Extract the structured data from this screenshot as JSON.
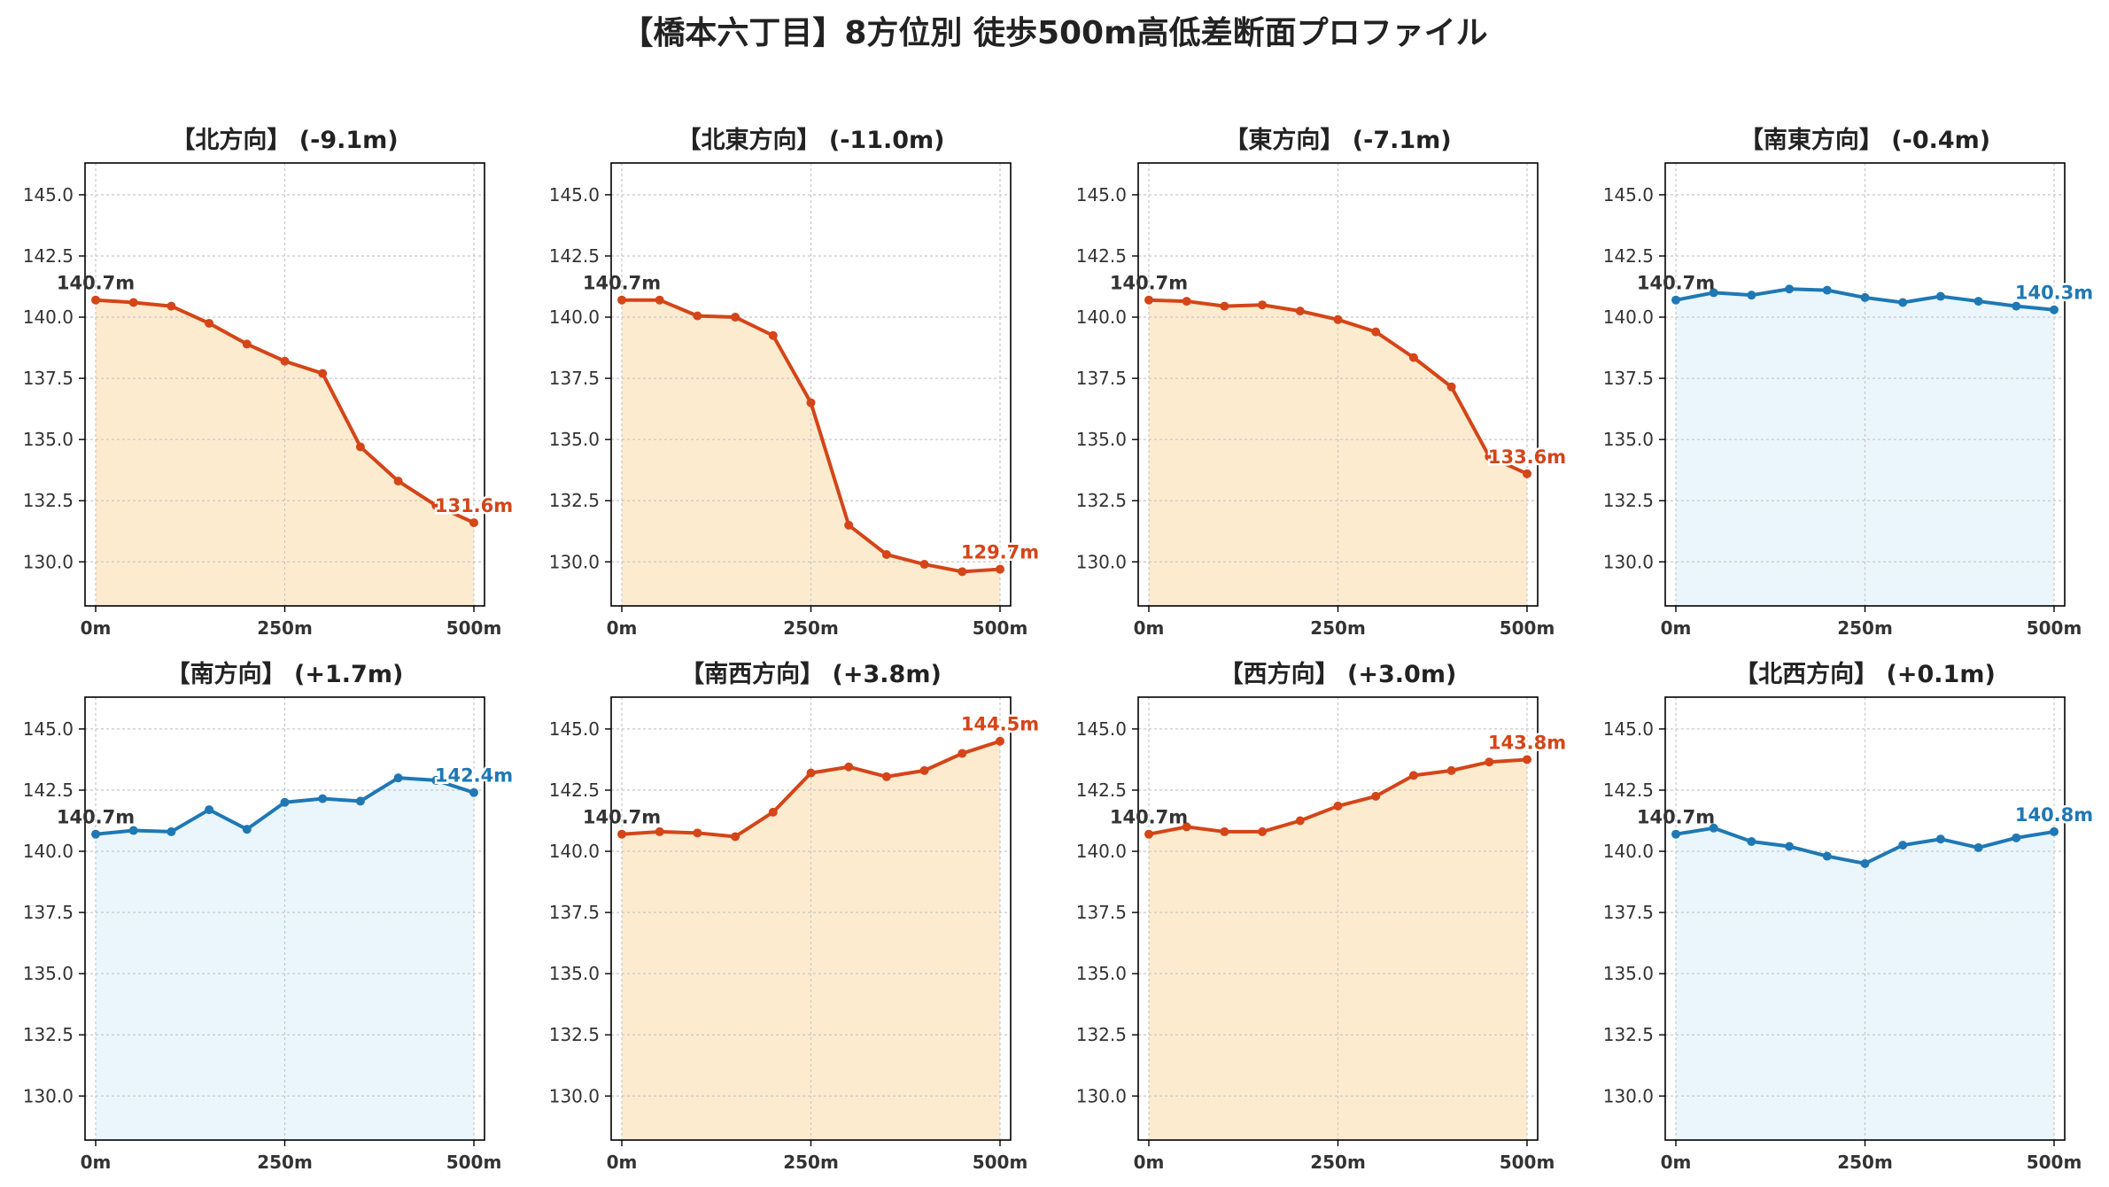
{
  "title": "【橋本六丁目】8方位別 徒歩500m高低差断面プロファイル",
  "colors": {
    "down": "#d44518",
    "down_fill": "#fdebd0",
    "flat": "#1f78b4",
    "flat_fill": "#eaf6fc",
    "start_label": "#333333",
    "axis": "#000000",
    "grid": "#c8c8c8",
    "tick_text": "#333333"
  },
  "chart_data": [
    {
      "type": "area",
      "title": "【北方向】 (-9.1m)",
      "color": "down",
      "x": [
        0,
        50,
        100,
        150,
        200,
        250,
        300,
        350,
        400,
        450,
        500
      ],
      "values": [
        140.7,
        140.6,
        140.45,
        139.75,
        138.9,
        138.2,
        137.7,
        134.7,
        133.3,
        132.3,
        131.6
      ],
      "start_label": "140.7m",
      "end_label": "131.6m",
      "ylim": [
        128.2,
        146.3
      ],
      "yticks": [
        "130.0",
        "132.5",
        "135.0",
        "137.5",
        "140.0",
        "142.5",
        "145.0"
      ],
      "xticks": [
        "0m",
        "250m",
        "500m"
      ],
      "grid": true
    },
    {
      "type": "area",
      "title": "【北東方向】 (-11.0m)",
      "color": "down",
      "x": [
        0,
        50,
        100,
        150,
        200,
        250,
        300,
        350,
        400,
        450,
        500
      ],
      "values": [
        140.7,
        140.7,
        140.05,
        140.0,
        139.25,
        136.5,
        131.5,
        130.3,
        129.9,
        129.6,
        129.7
      ],
      "start_label": "140.7m",
      "end_label": "129.7m",
      "ylim": [
        128.2,
        146.3
      ],
      "yticks": [
        "130.0",
        "132.5",
        "135.0",
        "137.5",
        "140.0",
        "142.5",
        "145.0"
      ],
      "xticks": [
        "0m",
        "250m",
        "500m"
      ],
      "grid": true
    },
    {
      "type": "area",
      "title": "【東方向】 (-7.1m)",
      "color": "down",
      "x": [
        0,
        50,
        100,
        150,
        200,
        250,
        300,
        350,
        400,
        450,
        500
      ],
      "values": [
        140.7,
        140.65,
        140.45,
        140.5,
        140.25,
        139.9,
        139.4,
        138.35,
        137.15,
        134.3,
        133.6
      ],
      "start_label": "140.7m",
      "end_label": "133.6m",
      "ylim": [
        128.2,
        146.3
      ],
      "yticks": [
        "130.0",
        "132.5",
        "135.0",
        "137.5",
        "140.0",
        "142.5",
        "145.0"
      ],
      "xticks": [
        "0m",
        "250m",
        "500m"
      ],
      "grid": true
    },
    {
      "type": "area",
      "title": "【南東方向】 (-0.4m)",
      "color": "flat",
      "x": [
        0,
        50,
        100,
        150,
        200,
        250,
        300,
        350,
        400,
        450,
        500
      ],
      "values": [
        140.7,
        141.0,
        140.9,
        141.15,
        141.1,
        140.8,
        140.6,
        140.85,
        140.65,
        140.45,
        140.3
      ],
      "start_label": "140.7m",
      "end_label": "140.3m",
      "ylim": [
        128.2,
        146.3
      ],
      "yticks": [
        "130.0",
        "132.5",
        "135.0",
        "137.5",
        "140.0",
        "142.5",
        "145.0"
      ],
      "xticks": [
        "0m",
        "250m",
        "500m"
      ],
      "grid": true
    },
    {
      "type": "area",
      "title": "【南方向】 (+1.7m)",
      "color": "flat",
      "x": [
        0,
        50,
        100,
        150,
        200,
        250,
        300,
        350,
        400,
        450,
        500
      ],
      "values": [
        140.7,
        140.85,
        140.8,
        141.7,
        140.9,
        142.0,
        142.15,
        142.05,
        143.0,
        142.9,
        142.4
      ],
      "start_label": "140.7m",
      "end_label": "142.4m",
      "ylim": [
        128.2,
        146.3
      ],
      "yticks": [
        "130.0",
        "132.5",
        "135.0",
        "137.5",
        "140.0",
        "142.5",
        "145.0"
      ],
      "xticks": [
        "0m",
        "250m",
        "500m"
      ],
      "grid": true
    },
    {
      "type": "area",
      "title": "【南西方向】 (+3.8m)",
      "color": "down",
      "x": [
        0,
        50,
        100,
        150,
        200,
        250,
        300,
        350,
        400,
        450,
        500
      ],
      "values": [
        140.7,
        140.8,
        140.75,
        140.6,
        141.6,
        143.2,
        143.45,
        143.05,
        143.3,
        144.0,
        144.5
      ],
      "start_label": "140.7m",
      "end_label": "144.5m",
      "ylim": [
        128.2,
        146.3
      ],
      "yticks": [
        "130.0",
        "132.5",
        "135.0",
        "137.5",
        "140.0",
        "142.5",
        "145.0"
      ],
      "xticks": [
        "0m",
        "250m",
        "500m"
      ],
      "grid": true
    },
    {
      "type": "area",
      "title": "【西方向】 (+3.0m)",
      "color": "down",
      "x": [
        0,
        50,
        100,
        150,
        200,
        250,
        300,
        350,
        400,
        450,
        500
      ],
      "values": [
        140.7,
        141.0,
        140.8,
        140.8,
        141.25,
        141.85,
        142.25,
        143.1,
        143.3,
        143.65,
        143.75
      ],
      "start_label": "140.7m",
      "end_label": "143.8m",
      "ylim": [
        128.2,
        146.3
      ],
      "yticks": [
        "130.0",
        "132.5",
        "135.0",
        "137.5",
        "140.0",
        "142.5",
        "145.0"
      ],
      "xticks": [
        "0m",
        "250m",
        "500m"
      ],
      "grid": true
    },
    {
      "type": "area",
      "title": "【北西方向】 (+0.1m)",
      "color": "flat",
      "x": [
        0,
        50,
        100,
        150,
        200,
        250,
        300,
        350,
        400,
        450,
        500
      ],
      "values": [
        140.7,
        140.95,
        140.4,
        140.2,
        139.8,
        139.5,
        140.25,
        140.5,
        140.15,
        140.55,
        140.8
      ],
      "start_label": "140.7m",
      "end_label": "140.8m",
      "ylim": [
        128.2,
        146.3
      ],
      "yticks": [
        "130.0",
        "132.5",
        "135.0",
        "137.5",
        "140.0",
        "142.5",
        "145.0"
      ],
      "xticks": [
        "0m",
        "250m",
        "500m"
      ],
      "grid": true
    }
  ]
}
